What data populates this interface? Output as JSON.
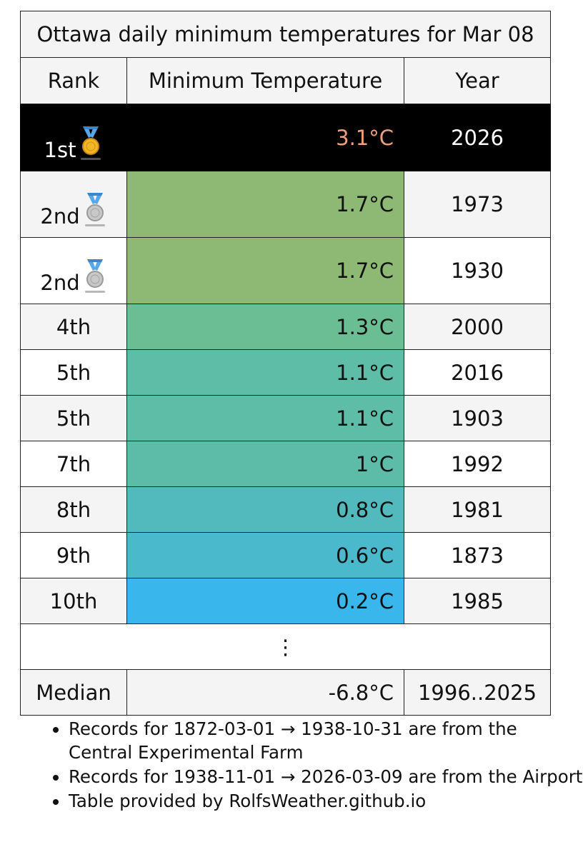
{
  "title": "Ottawa daily minimum temperatures for Mar 08",
  "headers": {
    "rank": "Rank",
    "temperature": "Minimum Temperature",
    "year": "Year"
  },
  "rows": [
    {
      "rank": "1st",
      "temperature": "3.1°C",
      "year": "2026",
      "medal": "gold",
      "color": "#000000"
    },
    {
      "rank": "2nd",
      "temperature": "1.7°C",
      "year": "1973",
      "medal": "silver",
      "color": "#8db974"
    },
    {
      "rank": "2nd",
      "temperature": "1.7°C",
      "year": "1930",
      "medal": "silver",
      "color": "#8db974"
    },
    {
      "rank": "4th",
      "temperature": "1.3°C",
      "year": "2000",
      "color": "#6bbd94"
    },
    {
      "rank": "5th",
      "temperature": "1.1°C",
      "year": "2016",
      "color": "#5ebda6"
    },
    {
      "rank": "5th",
      "temperature": "1.1°C",
      "year": "1903",
      "color": "#5ebda6"
    },
    {
      "rank": "7th",
      "temperature": "1°C",
      "year": "1992",
      "color": "#5cbca8"
    },
    {
      "rank": "8th",
      "temperature": "0.8°C",
      "year": "1981",
      "color": "#52babc"
    },
    {
      "rank": "9th",
      "temperature": "0.6°C",
      "year": "1873",
      "color": "#4ab9cc"
    },
    {
      "rank": "10th",
      "temperature": "0.2°C",
      "year": "1985",
      "color": "#39b6ec"
    }
  ],
  "ellipsis": "⋮",
  "median": {
    "label": "Median",
    "temperature": "-6.8°C",
    "years": "1996..2025"
  },
  "notes": [
    "Records for 1872-03-01 → 1938-10-31 are from the Central Experimental Farm",
    "Records for 1938-11-01 → 2026-03-09 are from the Airport",
    "Table provided by RolfsWeather.github.io"
  ]
}
